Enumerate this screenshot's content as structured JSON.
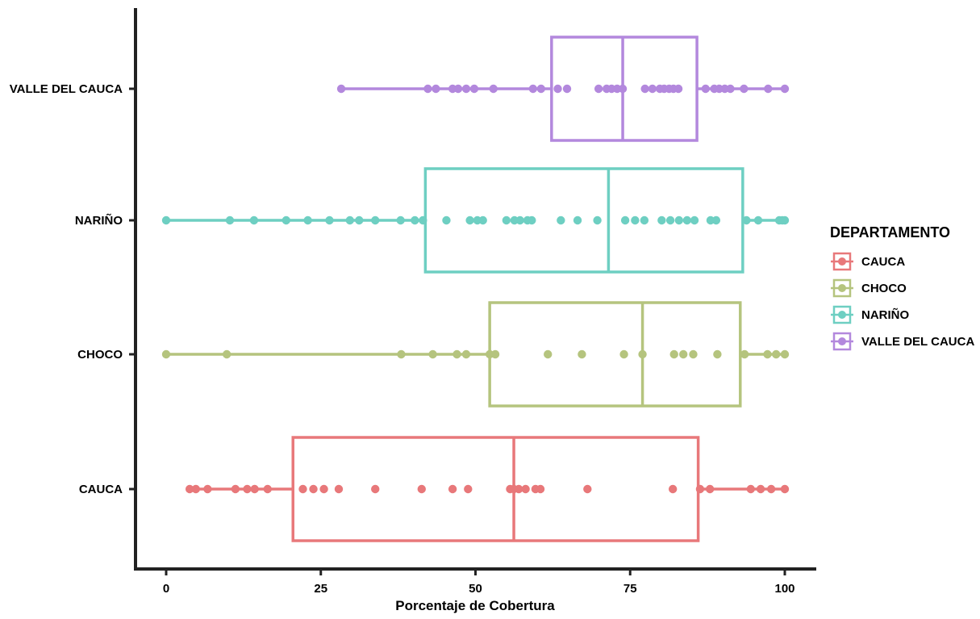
{
  "chart_data": {
    "type": "boxplot",
    "orientation": "horizontal",
    "title": "",
    "xlabel": "Porcentaje de Cobertura",
    "ylabel": "",
    "xlim": [
      -4,
      105
    ],
    "x_ticks": [
      0,
      25,
      50,
      75,
      100
    ],
    "grid": false,
    "legend_title": "DEPARTAMENTO",
    "legend_position": "right",
    "series": [
      {
        "name": "CAUCA",
        "color": "#E8787A",
        "box": {
          "q1": 20.5,
          "median": 56.2,
          "q3": 86.0,
          "whisker_low": 3.8,
          "whisker_high": 100.0
        },
        "points": [
          3.8,
          4.8,
          6.7,
          11.2,
          13.1,
          14.3,
          16.4,
          22.1,
          23.8,
          25.5,
          27.9,
          33.8,
          41.3,
          46.3,
          48.8,
          55.6,
          56.2,
          57.0,
          58.1,
          59.7,
          60.5,
          68.1,
          81.9,
          86.3,
          87.9,
          94.5,
          96.1,
          97.8,
          100.0
        ]
      },
      {
        "name": "CHOCO",
        "color": "#B5C47E",
        "box": {
          "q1": 52.3,
          "median": 77.0,
          "q3": 92.8,
          "whisker_low": 0.0,
          "whisker_high": 100.0
        },
        "points": [
          0.0,
          9.8,
          38.0,
          43.1,
          47.0,
          48.5,
          52.3,
          53.2,
          61.7,
          67.2,
          74.0,
          77.0,
          82.1,
          83.6,
          85.2,
          89.1,
          93.5,
          97.2,
          98.6,
          100.0
        ]
      },
      {
        "name": "NARIÑO",
        "color": "#6ECFC2",
        "box": {
          "q1": 41.9,
          "median": 71.5,
          "q3": 93.2,
          "whisker_low": 0.0,
          "whisker_high": 100.0
        },
        "points": [
          0.0,
          10.3,
          14.2,
          19.4,
          22.9,
          26.4,
          29.7,
          31.2,
          33.8,
          37.9,
          40.2,
          41.5,
          45.3,
          49.1,
          50.3,
          51.2,
          55.0,
          56.3,
          57.2,
          58.4,
          59.1,
          63.8,
          66.5,
          69.7,
          74.2,
          75.8,
          77.3,
          80.1,
          81.5,
          82.9,
          84.2,
          85.4,
          88.0,
          88.9,
          93.8,
          95.7,
          99.1,
          99.6,
          100.0
        ]
      },
      {
        "name": "VALLE DEL CAUCA",
        "color": "#B388DD",
        "box": {
          "q1": 62.3,
          "median": 73.8,
          "q3": 85.8,
          "whisker_low": 28.3,
          "whisker_high": 100.0
        },
        "points": [
          28.3,
          42.3,
          43.6,
          46.3,
          47.2,
          48.5,
          49.8,
          52.9,
          59.3,
          60.6,
          63.3,
          64.8,
          69.9,
          71.2,
          72.0,
          72.9,
          73.8,
          77.4,
          78.6,
          79.8,
          80.5,
          81.3,
          82.0,
          82.8,
          87.2,
          88.6,
          89.4,
          90.3,
          91.2,
          93.4,
          97.3,
          100.0
        ]
      }
    ]
  }
}
